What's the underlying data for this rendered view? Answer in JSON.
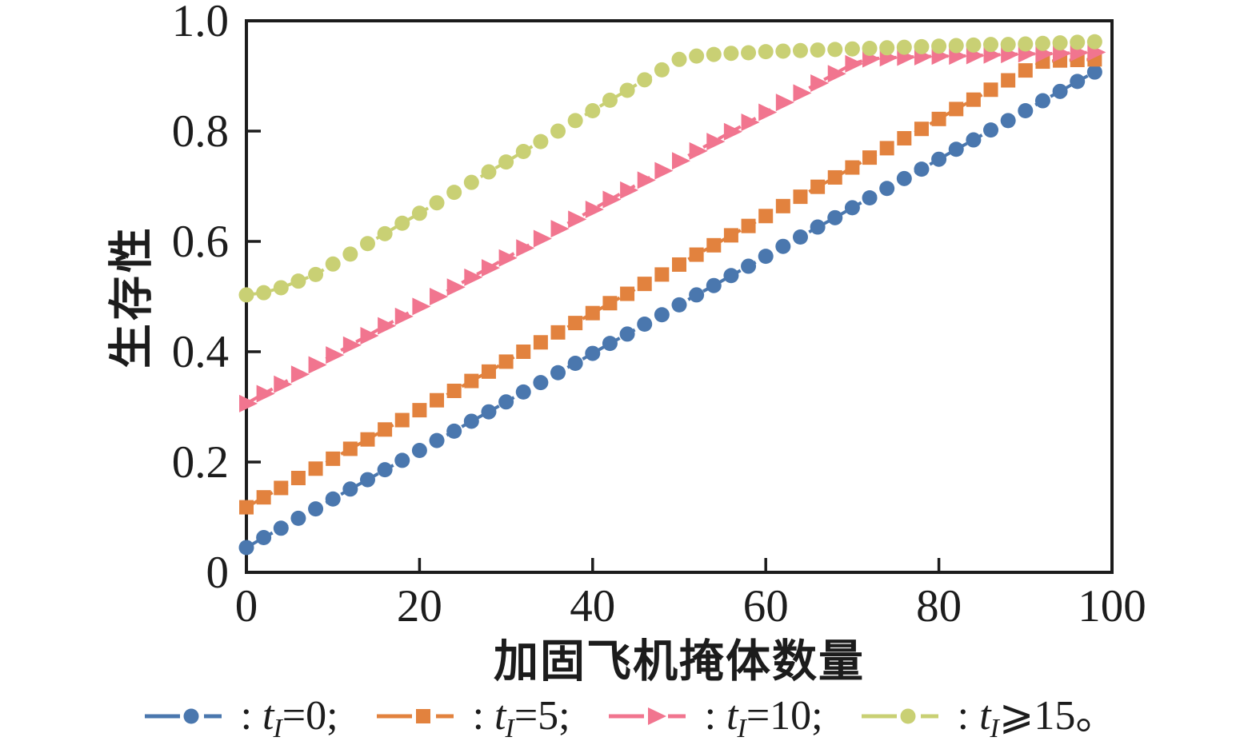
{
  "figure": {
    "background": "#ffffff",
    "axis_color": "#1c1c1c",
    "text_color": "#1c1c1c"
  },
  "chart_data": {
    "type": "line",
    "title": "",
    "xlabel": "加固飞机掩体数量",
    "ylabel": "生存性",
    "xlim": [
      0,
      100
    ],
    "ylim": [
      0,
      1.0
    ],
    "grid": false,
    "legend_position": "bottom",
    "xticks": {
      "values": [
        0,
        20,
        40,
        60,
        80,
        100
      ],
      "labels": [
        "0",
        "20",
        "40",
        "60",
        "80",
        "100"
      ]
    },
    "yticks": {
      "values": [
        0,
        0.2,
        0.4,
        0.6,
        0.8,
        1.0
      ],
      "labels": [
        "0",
        "0.2",
        "0.4",
        "0.6",
        "0.8",
        "1.0"
      ]
    },
    "x": [
      0,
      2,
      4,
      6,
      8,
      10,
      12,
      14,
      16,
      18,
      20,
      22,
      24,
      26,
      28,
      30,
      32,
      34,
      36,
      38,
      40,
      42,
      44,
      46,
      48,
      50,
      52,
      54,
      56,
      58,
      60,
      62,
      64,
      66,
      68,
      70,
      72,
      74,
      76,
      78,
      80,
      82,
      84,
      86,
      88,
      90,
      92,
      94,
      96,
      98
    ],
    "series": [
      {
        "id": "tI-0",
        "name": "tI=0",
        "marker": "circle",
        "linestyle": "dashed",
        "color": "#4a77ae",
        "values": [
          0.045,
          0.063,
          0.08,
          0.098,
          0.115,
          0.133,
          0.151,
          0.168,
          0.186,
          0.203,
          0.221,
          0.239,
          0.256,
          0.274,
          0.291,
          0.309,
          0.327,
          0.344,
          0.362,
          0.379,
          0.397,
          0.415,
          0.432,
          0.45,
          0.467,
          0.485,
          0.503,
          0.52,
          0.538,
          0.555,
          0.573,
          0.591,
          0.608,
          0.626,
          0.643,
          0.661,
          0.679,
          0.696,
          0.714,
          0.731,
          0.749,
          0.767,
          0.784,
          0.802,
          0.819,
          0.837,
          0.855,
          0.872,
          0.89,
          0.907
        ]
      },
      {
        "id": "tI-5",
        "name": "tI=5",
        "marker": "square",
        "linestyle": "dashed",
        "color": "#e2823e",
        "values": [
          0.118,
          0.136,
          0.153,
          0.171,
          0.188,
          0.206,
          0.224,
          0.241,
          0.259,
          0.276,
          0.294,
          0.312,
          0.329,
          0.347,
          0.364,
          0.382,
          0.4,
          0.417,
          0.435,
          0.452,
          0.47,
          0.488,
          0.505,
          0.523,
          0.54,
          0.558,
          0.576,
          0.593,
          0.611,
          0.628,
          0.646,
          0.664,
          0.681,
          0.699,
          0.716,
          0.734,
          0.752,
          0.769,
          0.787,
          0.804,
          0.822,
          0.84,
          0.857,
          0.875,
          0.892,
          0.91,
          0.926,
          0.928,
          0.929,
          0.93
        ]
      },
      {
        "id": "tI-10",
        "name": "tI=10",
        "marker": "triangle-right",
        "linestyle": "dashed",
        "color": "#f1758f",
        "values": [
          0.306,
          0.324,
          0.341,
          0.359,
          0.376,
          0.394,
          0.412,
          0.429,
          0.447,
          0.464,
          0.482,
          0.5,
          0.517,
          0.535,
          0.552,
          0.57,
          0.588,
          0.605,
          0.623,
          0.64,
          0.658,
          0.676,
          0.693,
          0.711,
          0.728,
          0.746,
          0.764,
          0.781,
          0.799,
          0.816,
          0.834,
          0.852,
          0.869,
          0.887,
          0.904,
          0.922,
          0.931,
          0.933,
          0.934,
          0.935,
          0.936,
          0.936,
          0.937,
          0.938,
          0.939,
          0.94,
          0.94,
          0.941,
          0.942,
          0.943
        ]
      },
      {
        "id": "tI-ge-15",
        "name": "tI>=15",
        "marker": "circle",
        "linestyle": "dashed",
        "color": "#c9d074",
        "values": [
          0.503,
          0.507,
          0.516,
          0.528,
          0.54,
          0.559,
          0.577,
          0.596,
          0.614,
          0.633,
          0.651,
          0.67,
          0.689,
          0.707,
          0.726,
          0.744,
          0.763,
          0.781,
          0.8,
          0.819,
          0.837,
          0.856,
          0.874,
          0.893,
          0.911,
          0.93,
          0.936,
          0.939,
          0.941,
          0.942,
          0.944,
          0.945,
          0.946,
          0.947,
          0.948,
          0.949,
          0.95,
          0.951,
          0.952,
          0.953,
          0.954,
          0.955,
          0.956,
          0.957,
          0.957,
          0.958,
          0.959,
          0.96,
          0.961,
          0.962
        ]
      }
    ],
    "legend": [
      {
        "series": "tI-0",
        "colon": ": ",
        "variable": "t",
        "subscript": "I",
        "value": "=0;"
      },
      {
        "series": "tI-5",
        "colon": ": ",
        "variable": "t",
        "subscript": "I",
        "value": "=5;"
      },
      {
        "series": "tI-10",
        "colon": ": ",
        "variable": "t",
        "subscript": "I",
        "value": "=10;"
      },
      {
        "series": "tI-ge-15",
        "colon": ": ",
        "variable": "t",
        "subscript": "I",
        "value": "⩾15。"
      }
    ]
  }
}
